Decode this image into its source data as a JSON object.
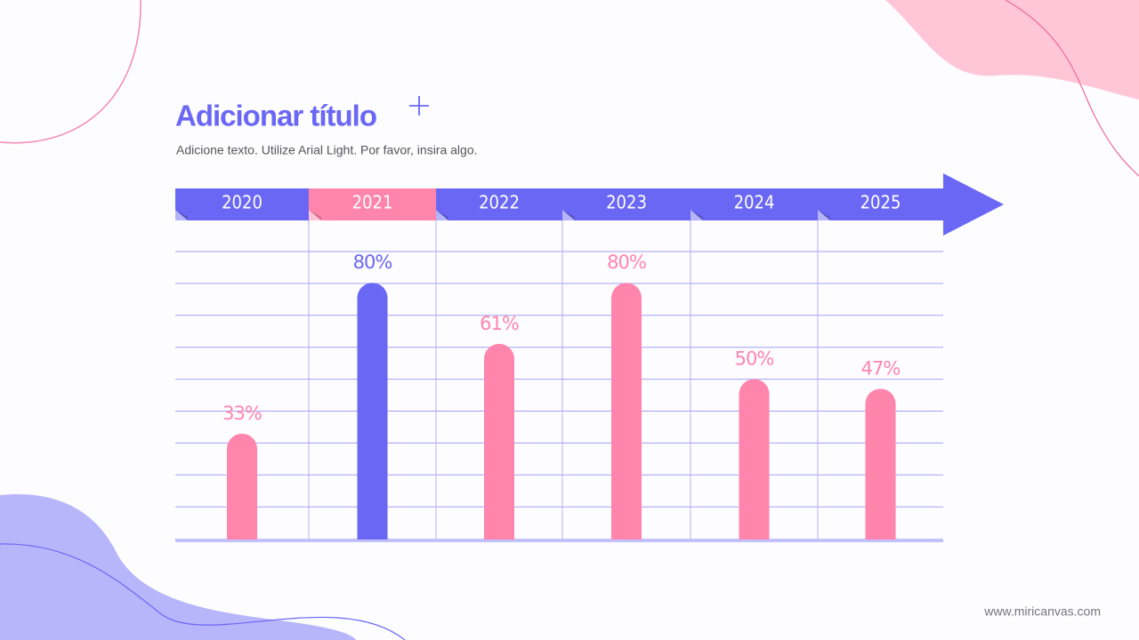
{
  "chart_data": {
    "type": "bar",
    "title": "Adicionar título",
    "subtitle": "Adicione texto. Utilize Arial Light. Por favor, insira algo.",
    "categories": [
      "2020",
      "2021",
      "2022",
      "2023",
      "2024",
      "2025"
    ],
    "values": [
      33,
      80,
      61,
      80,
      50,
      47
    ],
    "value_labels": [
      "33%",
      "80%",
      "61%",
      "80%",
      "50%",
      "47%"
    ],
    "colors": [
      "#ff85ad",
      "#6a67f5",
      "#ff85ad",
      "#ff85ad",
      "#ff85ad",
      "#ff85ad"
    ],
    "tab_colors": [
      "#6a67f5",
      "#ff85ad",
      "#6a67f5",
      "#6a67f5",
      "#6a67f5",
      "#6a67f5"
    ],
    "source": "www.miricanvas.com"
  }
}
